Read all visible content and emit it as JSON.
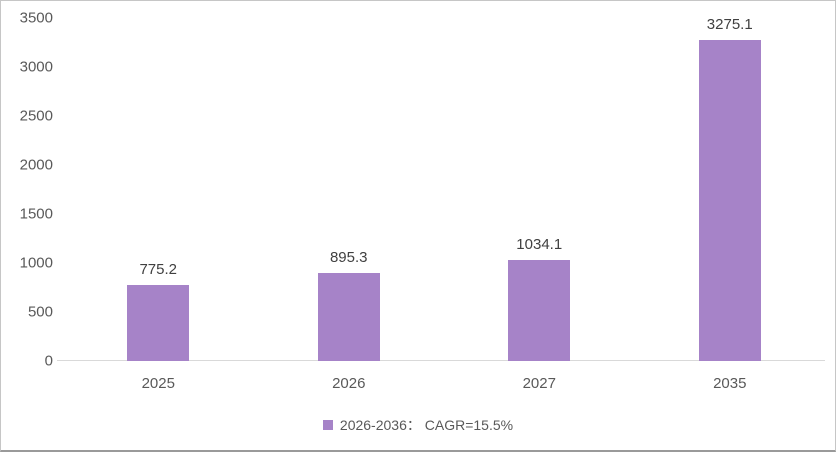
{
  "chart_data": {
    "type": "bar",
    "categories": [
      "2025",
      "2026",
      "2027",
      "2035"
    ],
    "values": [
      775.2,
      895.3,
      1034.1,
      3275.1
    ],
    "value_labels": [
      "775.2",
      "895.3",
      "1034.1",
      "3275.1"
    ],
    "ytick_labels": [
      "0",
      "500",
      "1000",
      "1500",
      "2000",
      "2500",
      "3000",
      "3500"
    ],
    "title": "",
    "xlabel": "",
    "ylabel": "",
    "ylim": [
      0,
      3500
    ],
    "ytick_step": 500,
    "grid": false,
    "legend_position": "bottom",
    "legend": [
      {
        "label": "2026-2036： CAGR=15.5%",
        "color": "#a683c8"
      }
    ]
  },
  "colors": {
    "bar": "#a683c8",
    "axis_text": "#595959",
    "value_text": "#404040",
    "axis_line": "#d9d9d9",
    "background": "#ffffff"
  }
}
